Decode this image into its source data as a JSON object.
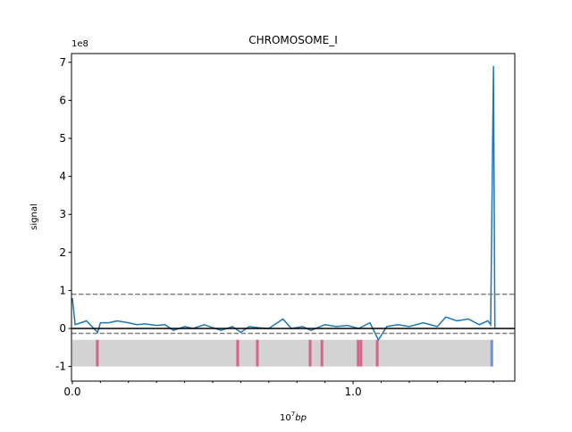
{
  "chart_data": {
    "type": "line",
    "title": "CHROMOSOME_I",
    "y_offset_label": "1e8",
    "y_label": "signal",
    "x_label": {
      "base": "10",
      "exponent": "7",
      "unit": "bp"
    },
    "xlim": [
      -0.003,
      1.576
    ],
    "ylim": [
      -1.385,
      7.23
    ],
    "xticks": [
      {
        "value": 0,
        "label": "0.0"
      },
      {
        "value": 1,
        "label": "1.0"
      }
    ],
    "xminorticks": [
      0.1,
      0.2,
      0.3,
      0.4,
      0.5,
      0.6,
      0.7,
      0.8,
      0.9,
      1.1,
      1.2,
      1.3,
      1.4,
      1.5
    ],
    "yticks": [
      -1,
      0,
      1,
      2,
      3,
      4,
      5,
      6,
      7
    ],
    "series": [
      {
        "color": "#1f77b4",
        "x": [
          0.0,
          0.01,
          0.03,
          0.05,
          0.07,
          0.09,
          0.1,
          0.13,
          0.16,
          0.2,
          0.23,
          0.26,
          0.3,
          0.33,
          0.36,
          0.4,
          0.43,
          0.47,
          0.5,
          0.53,
          0.57,
          0.6,
          0.63,
          0.66,
          0.7,
          0.75,
          0.78,
          0.82,
          0.85,
          0.9,
          0.94,
          0.98,
          1.02,
          1.06,
          1.09,
          1.12,
          1.16,
          1.2,
          1.25,
          1.3,
          1.33,
          1.37,
          1.41,
          1.45,
          1.48,
          1.49,
          1.5,
          1.505
        ],
        "values": [
          0.8,
          0.1,
          0.15,
          0.2,
          0.05,
          -0.1,
          0.15,
          0.15,
          0.2,
          0.15,
          0.1,
          0.12,
          0.08,
          0.1,
          -0.05,
          0.05,
          0.0,
          0.1,
          0.02,
          -0.05,
          0.05,
          -0.1,
          0.05,
          0.02,
          0.0,
          0.25,
          0.0,
          0.05,
          -0.05,
          0.1,
          0.05,
          0.08,
          0.0,
          0.15,
          -0.3,
          0.05,
          0.1,
          0.05,
          0.15,
          0.05,
          0.3,
          0.2,
          0.25,
          0.1,
          0.2,
          0.1,
          6.9,
          0.0
        ]
      }
    ],
    "hlines": [
      {
        "y": 0.9,
        "color": "#808080",
        "dashed": true
      },
      {
        "y": -0.13,
        "color": "#808080",
        "dashed": true
      },
      {
        "y": 0,
        "color": "#000000",
        "dashed": false
      }
    ],
    "track": {
      "y": [
        -1.0,
        -0.3
      ],
      "color": "#d3d3d3",
      "x": [
        0.0,
        1.49
      ]
    },
    "features": [
      {
        "x": 0.089,
        "color": "#d8648a"
      },
      {
        "x": 0.589,
        "color": "#d8648a"
      },
      {
        "x": 0.659,
        "color": "#d8648a"
      },
      {
        "x": 0.847,
        "color": "#d8648a"
      },
      {
        "x": 0.889,
        "color": "#d8648a"
      },
      {
        "x": 1.018,
        "color": "#d8648a"
      },
      {
        "x": 1.028,
        "color": "#d8648a"
      },
      {
        "x": 1.086,
        "color": "#d8648a"
      },
      {
        "x": 1.494,
        "color": "#6495ed"
      }
    ]
  }
}
